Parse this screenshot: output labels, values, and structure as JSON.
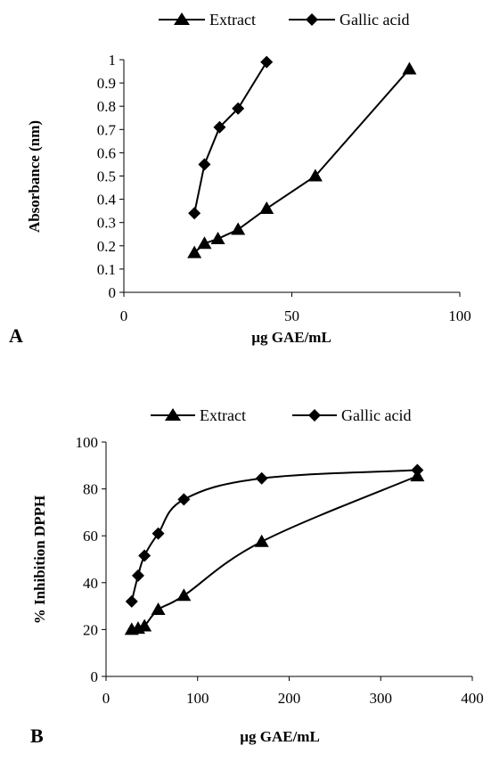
{
  "chart_data": [
    {
      "type": "line",
      "panel_label": "A",
      "xlabel": "µg GAE/mL",
      "ylabel": "Absorbance (nm)",
      "xlim": [
        0,
        100
      ],
      "ylim": [
        0,
        1
      ],
      "x_ticks": [
        "0",
        "50",
        "100"
      ],
      "y_ticks": [
        "0",
        "0.1",
        "0.2",
        "0.3",
        "0.4",
        "0.5",
        "0.6",
        "0.7",
        "0.8",
        "0.9",
        "1"
      ],
      "legend_position": "top",
      "smooth": false,
      "series": [
        {
          "name": "Extract",
          "marker": "triangle",
          "x": [
            21,
            24,
            28,
            34,
            42.5,
            57,
            85
          ],
          "y": [
            0.17,
            0.21,
            0.23,
            0.27,
            0.36,
            0.5,
            0.96
          ]
        },
        {
          "name": "Gallic acid",
          "marker": "diamond",
          "x": [
            21,
            24,
            28.5,
            34,
            42.5
          ],
          "y": [
            0.34,
            0.55,
            0.71,
            0.79,
            0.99
          ]
        }
      ]
    },
    {
      "type": "line",
      "panel_label": "B",
      "xlabel": "µg GAE/mL",
      "ylabel": "% Inhibition DPPH",
      "xlim": [
        0,
        400
      ],
      "ylim": [
        0,
        100
      ],
      "x_ticks": [
        "0",
        "100",
        "200",
        "300",
        "400"
      ],
      "y_ticks": [
        "0",
        "20",
        "40",
        "60",
        "80",
        "100"
      ],
      "legend_position": "top",
      "smooth": true,
      "series": [
        {
          "name": "Extract",
          "marker": "triangle",
          "x": [
            28,
            35,
            42,
            57,
            85,
            170,
            340
          ],
          "y": [
            20,
            20.5,
            21.5,
            28.5,
            34.5,
            57.5,
            85.5
          ]
        },
        {
          "name": "Gallic acid",
          "marker": "diamond",
          "x": [
            28,
            35,
            42,
            57,
            85,
            170,
            340
          ],
          "y": [
            32,
            43,
            51.5,
            61,
            75.5,
            84.5,
            88
          ]
        }
      ]
    }
  ]
}
